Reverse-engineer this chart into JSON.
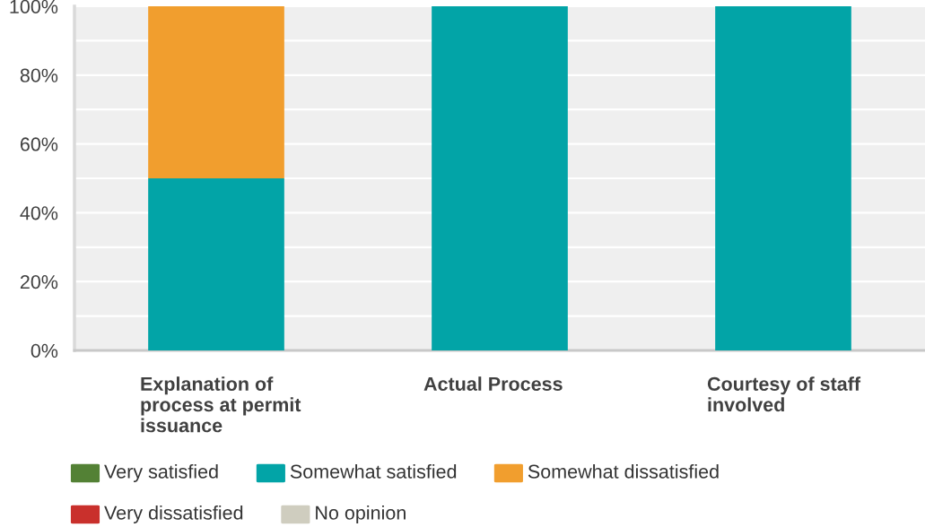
{
  "chart_data": {
    "type": "bar",
    "stacked": true,
    "categories": [
      "Explanation of\nprocess at permit\nissuance",
      "Actual Process",
      "Courtesy of staff\ninvolved"
    ],
    "series": [
      {
        "name": "Very satisfied",
        "color": "#538135",
        "values": [
          0,
          0,
          0
        ]
      },
      {
        "name": "Somewhat satisfied",
        "color": "#02a4a7",
        "values": [
          50,
          100,
          100
        ]
      },
      {
        "name": "Somewhat dissatisfied",
        "color": "#f19e2e",
        "values": [
          50,
          0,
          0
        ]
      },
      {
        "name": "Very dissatisfied",
        "color": "#c9302c",
        "values": [
          0,
          0,
          0
        ]
      },
      {
        "name": "No opinion",
        "color": "#cfcdbf",
        "values": [
          0,
          0,
          0
        ]
      }
    ],
    "ylim": [
      0,
      100
    ],
    "yticks": [
      {
        "value": 0,
        "label": "0%"
      },
      {
        "value": 10,
        "label": null
      },
      {
        "value": 20,
        "label": "20%"
      },
      {
        "value": 30,
        "label": null
      },
      {
        "value": 40,
        "label": "40%"
      },
      {
        "value": 50,
        "label": null
      },
      {
        "value": 60,
        "label": "60%"
      },
      {
        "value": 70,
        "label": null
      },
      {
        "value": 80,
        "label": "80%"
      },
      {
        "value": 90,
        "label": null
      },
      {
        "value": 100,
        "label": "100%"
      }
    ],
    "grid": "y",
    "legend": "bottom"
  }
}
